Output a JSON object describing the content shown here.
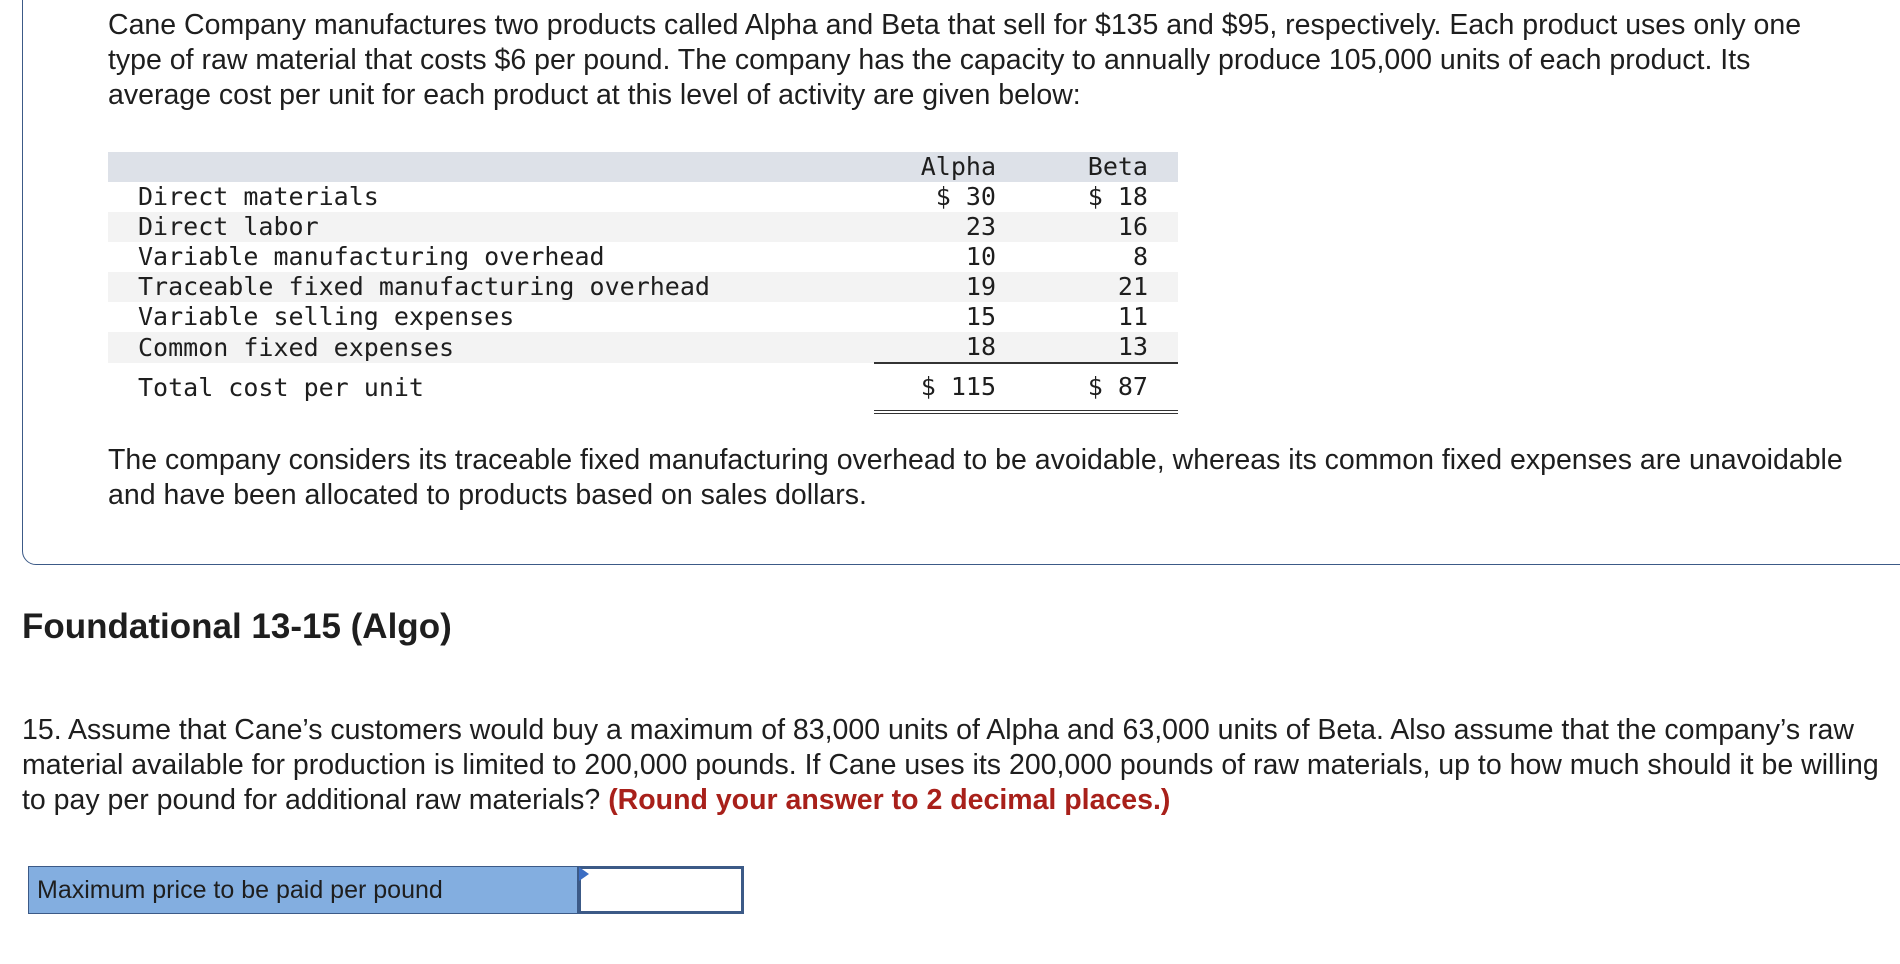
{
  "intro": {
    "text": "Cane Company manufactures two products called Alpha and Beta that sell for $135 and $95, respectively. Each product uses only one type of raw material that costs $6 per pound. The company has the capacity to annually produce 105,000 units of each product. Its average cost per unit for each product at this level of activity are given below:"
  },
  "cost_table": {
    "headers": [
      "Alpha",
      "Beta"
    ],
    "rows": [
      {
        "label": "Direct materials",
        "alpha": "$ 30",
        "beta": "$ 18"
      },
      {
        "label": "Direct labor",
        "alpha": "23",
        "beta": "16"
      },
      {
        "label": "Variable manufacturing overhead",
        "alpha": "10",
        "beta": "8"
      },
      {
        "label": "Traceable fixed manufacturing overhead",
        "alpha": "19",
        "beta": "21"
      },
      {
        "label": "Variable selling expenses",
        "alpha": "15",
        "beta": "11"
      },
      {
        "label": "Common fixed expenses",
        "alpha": "18",
        "beta": "13"
      }
    ],
    "total": {
      "label": "Total cost per unit",
      "alpha": "$ 115",
      "beta": "$ 87"
    }
  },
  "note": {
    "text": "The company considers its traceable fixed manufacturing overhead to be avoidable, whereas its common fixed expenses are unavoidable and have been allocated to products based on sales dollars."
  },
  "section": {
    "title": "Foundational 13-15 (Algo)"
  },
  "question": {
    "text": "15. Assume that Cane’s customers would buy a maximum of 83,000 units of Alpha and 63,000 units of Beta. Also assume that the company’s raw material available for production is limited to 200,000 pounds. If Cane uses its 200,000 pounds of raw materials, up to how much should it be willing to pay per pound for additional raw materials?",
    "emphasis": "(Round your answer to 2 decimal places.)"
  },
  "answer": {
    "label": "Maximum price to be paid per pound",
    "value": ""
  },
  "icons": {
    "answer_flag": "flag-corner-icon"
  },
  "colors": {
    "border": "#3c5a87",
    "label_bg": "#83aee0",
    "emphasis": "#a8201a"
  }
}
